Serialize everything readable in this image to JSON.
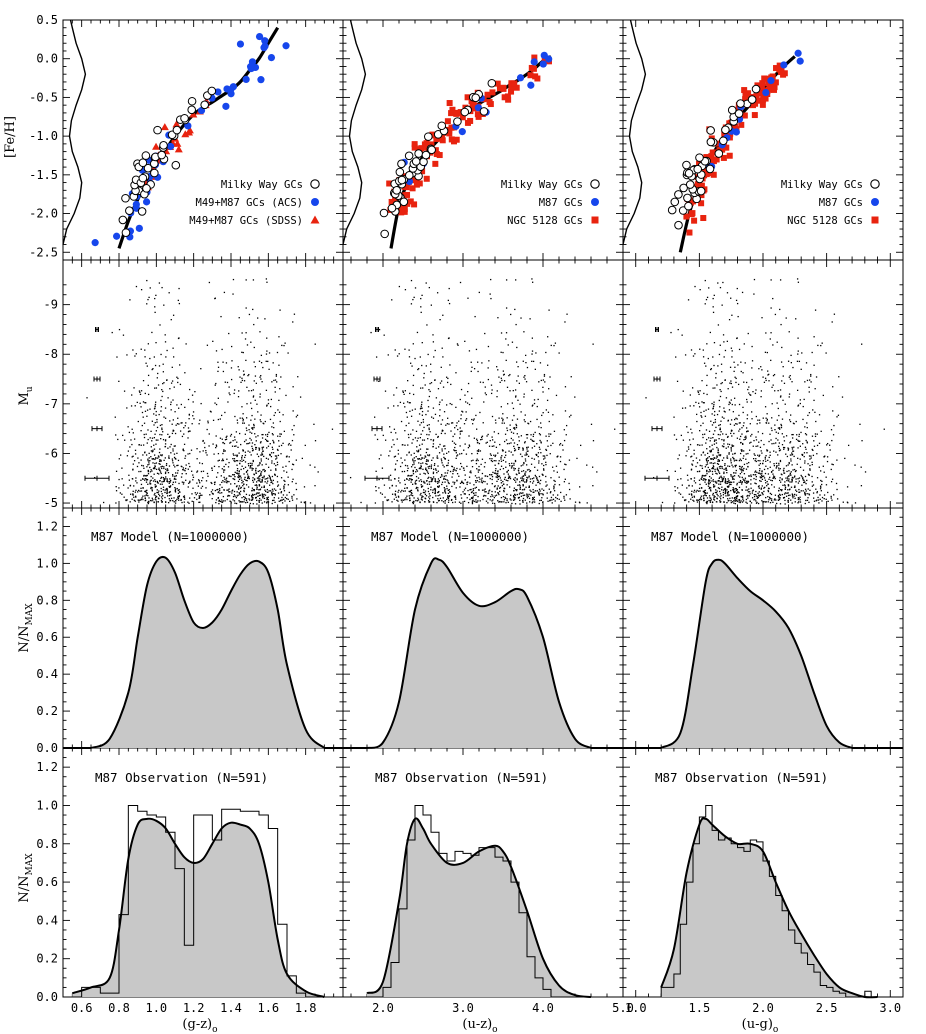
{
  "figure": {
    "ylabels": {
      "feh": "[Fe/H]",
      "mu_main": "M",
      "mu_sub": "u",
      "norm_main": "N/N",
      "norm_sub": "MAX"
    },
    "xlabels": [
      {
        "main": "(g-z)",
        "sub": "o"
      },
      {
        "main": "(u-z)",
        "sub": "o"
      },
      {
        "main": "(u-g)",
        "sub": "o"
      }
    ],
    "model_label": "M87 Model (N=1000000)",
    "obs_label": "M87 Observation (N=591)",
    "colors": {
      "mw": "#000000",
      "m87": "#1646ec",
      "red": "#e8230f",
      "fill": "#c8c8c8"
    }
  },
  "chart_data": [
    {
      "type": "scatter",
      "panel": "[Fe/H] vs (g-z)o",
      "xlim": [
        0.5,
        2.0
      ],
      "ylim": [
        -2.6,
        0.5
      ],
      "x_ticks": [
        0.6,
        0.8,
        1.0,
        1.2,
        1.4,
        1.6,
        1.8
      ],
      "y_ticks": [
        "0.5",
        "0.0",
        "-0.5",
        "-1.0",
        "-1.5",
        "-2.0",
        "-2.5"
      ],
      "legend": [
        "Milky Way GCs",
        "M49+M87 GCs (ACS)",
        "M49+M87 GCs (SDSS)"
      ],
      "legend_markers": [
        "open-circle",
        "filled-circle",
        "triangle"
      ],
      "relation_x": [
        0.8,
        0.85,
        0.9,
        0.95,
        1.0,
        1.05,
        1.1,
        1.15,
        1.2,
        1.25,
        1.3,
        1.35,
        1.4,
        1.45,
        1.5,
        1.55,
        1.6,
        1.65
      ],
      "relation_y": [
        -2.45,
        -2.1,
        -1.82,
        -1.6,
        -1.38,
        -1.18,
        -1.0,
        -0.85,
        -0.72,
        -0.63,
        -0.56,
        -0.48,
        -0.4,
        -0.3,
        -0.15,
        0.0,
        0.2,
        0.4
      ],
      "mw_mdf_y": [
        -2.4,
        -2.2,
        -2.0,
        -1.8,
        -1.6,
        -1.4,
        -1.2,
        -1.0,
        -0.8,
        -0.6,
        -0.4,
        -0.2,
        0.0,
        0.2,
        0.4,
        0.5
      ],
      "mw_mdf_x": [
        0.5,
        0.52,
        0.56,
        0.59,
        0.6,
        0.58,
        0.55,
        0.535,
        0.545,
        0.57,
        0.6,
        0.62,
        0.6,
        0.57,
        0.55,
        0.54
      ]
    },
    {
      "type": "scatter",
      "panel": "[Fe/H] vs (u-z)o",
      "xlim": [
        1.5,
        5.0
      ],
      "ylim": [
        -2.6,
        0.5
      ],
      "legend": [
        "Milky Way GCs",
        "M87 GCs",
        "NGC 5128 GCs"
      ],
      "legend_markers": [
        "open-circle",
        "filled-circle",
        "square"
      ],
      "relation_x": [
        2.1,
        2.2,
        2.3,
        2.4,
        2.5,
        2.6,
        2.7,
        2.8,
        2.9,
        3.0,
        3.1,
        3.2,
        3.3,
        3.4,
        3.5,
        3.6,
        3.7,
        3.8,
        3.9,
        4.0,
        4.1
      ],
      "relation_y": [
        -2.45,
        -1.9,
        -1.62,
        -1.42,
        -1.27,
        -1.15,
        -1.04,
        -0.95,
        -0.85,
        -0.75,
        -0.65,
        -0.58,
        -0.52,
        -0.46,
        -0.4,
        -0.33,
        -0.27,
        -0.2,
        -0.12,
        -0.03,
        0.03
      ]
    },
    {
      "type": "scatter",
      "panel": "[Fe/H] vs (u-g)o",
      "xlim": [
        0.9,
        3.1
      ],
      "ylim": [
        -2.6,
        0.5
      ],
      "legend": [
        "Milky Way GCs",
        "M87 GCs",
        "NGC 5128 GCs"
      ],
      "legend_markers": [
        "open-circle",
        "filled-circle",
        "square"
      ],
      "relation_x": [
        1.35,
        1.42,
        1.5,
        1.58,
        1.66,
        1.75,
        1.85,
        1.95,
        2.05,
        2.15,
        2.25
      ],
      "relation_y": [
        -2.5,
        -2.0,
        -1.62,
        -1.32,
        -1.08,
        -0.87,
        -0.68,
        -0.5,
        -0.3,
        -0.12,
        0.03
      ]
    },
    {
      "type": "scatter",
      "panel": "Mu vs colour (all three columns)",
      "ylim": [
        -4.9,
        -9.9
      ],
      "y_ticks": [
        "-9",
        "-8",
        "-7",
        "-6",
        "-5"
      ],
      "error_bar_mags": [
        -8.5,
        -7.5,
        -6.5,
        -5.5
      ],
      "error_bar_halfwidths_gz": [
        0.01,
        0.02,
        0.03,
        0.07
      ]
    },
    {
      "type": "area",
      "panel": "Model colour distributions",
      "ylim": [
        0,
        1.3
      ],
      "y_ticks": [
        "0.0",
        "0.2",
        "0.4",
        "0.6",
        "0.8",
        "1.0",
        "1.2"
      ],
      "gz": {
        "x": [
          0.65,
          0.75,
          0.85,
          0.9,
          0.95,
          1.0,
          1.05,
          1.1,
          1.15,
          1.2,
          1.25,
          1.3,
          1.35,
          1.4,
          1.45,
          1.5,
          1.55,
          1.6,
          1.65,
          1.7,
          1.8,
          1.9
        ],
        "y": [
          0.0,
          0.05,
          0.3,
          0.6,
          0.88,
          1.01,
          1.03,
          0.95,
          0.8,
          0.68,
          0.65,
          0.68,
          0.75,
          0.85,
          0.94,
          1.0,
          1.01,
          0.95,
          0.75,
          0.45,
          0.1,
          0.0
        ]
      },
      "uz": {
        "x": [
          1.8,
          2.0,
          2.2,
          2.4,
          2.6,
          2.7,
          2.8,
          3.0,
          3.2,
          3.4,
          3.6,
          3.7,
          3.8,
          4.0,
          4.2,
          4.4,
          4.6
        ],
        "y": [
          0.0,
          0.03,
          0.25,
          0.75,
          1.0,
          1.02,
          0.98,
          0.84,
          0.77,
          0.79,
          0.85,
          0.86,
          0.82,
          0.6,
          0.25,
          0.05,
          0.0
        ]
      },
      "ug": {
        "x": [
          1.2,
          1.35,
          1.45,
          1.55,
          1.6,
          1.65,
          1.7,
          1.8,
          1.9,
          2.0,
          2.1,
          2.2,
          2.3,
          2.4,
          2.5,
          2.6,
          2.7
        ],
        "y": [
          0.0,
          0.08,
          0.45,
          0.9,
          1.0,
          1.02,
          1.0,
          0.92,
          0.85,
          0.8,
          0.74,
          0.65,
          0.5,
          0.3,
          0.12,
          0.03,
          0.0
        ]
      }
    },
    {
      "type": "bar",
      "panel": "Observed colour histograms",
      "ylim": [
        0,
        1.3
      ],
      "gz": {
        "edges": [
          0.55,
          0.6,
          0.65,
          0.7,
          0.75,
          0.8,
          0.85,
          0.9,
          0.95,
          1.0,
          1.05,
          1.1,
          1.15,
          1.2,
          1.25,
          1.3,
          1.35,
          1.4,
          1.45,
          1.5,
          1.55,
          1.6,
          1.65,
          1.7,
          1.75,
          1.8,
          1.85,
          1.9,
          1.95
        ],
        "values": [
          0.0,
          0.05,
          0.05,
          0.02,
          0.02,
          0.43,
          1.0,
          0.97,
          0.95,
          0.94,
          0.86,
          0.67,
          0.27,
          0.95,
          0.95,
          0.82,
          0.98,
          0.98,
          0.97,
          0.97,
          0.95,
          0.88,
          0.38,
          0.11,
          0.02,
          0.0,
          0.0,
          0.0
        ],
        "kde_x": [
          0.55,
          0.65,
          0.75,
          0.8,
          0.85,
          0.9,
          0.95,
          1.0,
          1.05,
          1.1,
          1.15,
          1.2,
          1.25,
          1.3,
          1.35,
          1.4,
          1.45,
          1.5,
          1.55,
          1.6,
          1.65,
          1.7,
          1.8,
          1.9
        ],
        "kde_y": [
          0.02,
          0.05,
          0.1,
          0.35,
          0.72,
          0.9,
          0.93,
          0.92,
          0.88,
          0.8,
          0.73,
          0.7,
          0.72,
          0.8,
          0.88,
          0.91,
          0.9,
          0.88,
          0.8,
          0.6,
          0.3,
          0.12,
          0.03,
          0.0
        ]
      },
      "uz": {
        "edges": [
          1.8,
          1.9,
          2.0,
          2.1,
          2.2,
          2.3,
          2.4,
          2.5,
          2.6,
          2.7,
          2.8,
          2.9,
          3.0,
          3.1,
          3.2,
          3.3,
          3.4,
          3.5,
          3.6,
          3.7,
          3.8,
          3.9,
          4.0,
          4.1,
          4.2,
          4.3,
          4.4,
          4.5,
          4.6
        ],
        "values": [
          0.0,
          0.0,
          0.05,
          0.18,
          0.46,
          0.82,
          1.0,
          0.95,
          0.86,
          0.75,
          0.71,
          0.76,
          0.75,
          0.74,
          0.78,
          0.78,
          0.73,
          0.71,
          0.6,
          0.44,
          0.21,
          0.1,
          0.04,
          0.0,
          0.0,
          0.0,
          0.0,
          0.0
        ],
        "kde_x": [
          1.8,
          2.0,
          2.2,
          2.3,
          2.4,
          2.5,
          2.6,
          2.8,
          3.0,
          3.2,
          3.4,
          3.5,
          3.6,
          3.8,
          4.0,
          4.2,
          4.4,
          4.6
        ],
        "kde_y": [
          0.02,
          0.08,
          0.5,
          0.8,
          0.93,
          0.88,
          0.8,
          0.7,
          0.7,
          0.76,
          0.79,
          0.76,
          0.68,
          0.45,
          0.2,
          0.06,
          0.01,
          0.0
        ]
      },
      "ug": {
        "edges": [
          1.2,
          1.25,
          1.3,
          1.35,
          1.4,
          1.45,
          1.5,
          1.55,
          1.6,
          1.65,
          1.7,
          1.75,
          1.8,
          1.85,
          1.9,
          1.95,
          2.0,
          2.05,
          2.1,
          2.15,
          2.2,
          2.25,
          2.3,
          2.35,
          2.4,
          2.45,
          2.5,
          2.55,
          2.6,
          2.65,
          2.7,
          2.75,
          2.8,
          2.85,
          2.9
        ],
        "values": [
          0.05,
          0.05,
          0.12,
          0.38,
          0.6,
          0.8,
          0.94,
          1.0,
          0.87,
          0.82,
          0.83,
          0.8,
          0.78,
          0.76,
          0.82,
          0.81,
          0.71,
          0.63,
          0.53,
          0.45,
          0.35,
          0.28,
          0.23,
          0.17,
          0.13,
          0.06,
          0.05,
          0.03,
          0.02,
          0.0,
          0.0,
          0.0,
          0.03,
          0.0
        ],
        "kde_x": [
          1.2,
          1.3,
          1.4,
          1.5,
          1.55,
          1.6,
          1.7,
          1.8,
          1.9,
          2.0,
          2.1,
          2.2,
          2.3,
          2.4,
          2.5,
          2.6,
          2.7,
          2.8,
          2.9
        ],
        "kde_y": [
          0.05,
          0.25,
          0.65,
          0.9,
          0.93,
          0.9,
          0.84,
          0.8,
          0.8,
          0.76,
          0.6,
          0.45,
          0.33,
          0.22,
          0.12,
          0.05,
          0.02,
          0.0,
          0.0
        ]
      }
    }
  ]
}
